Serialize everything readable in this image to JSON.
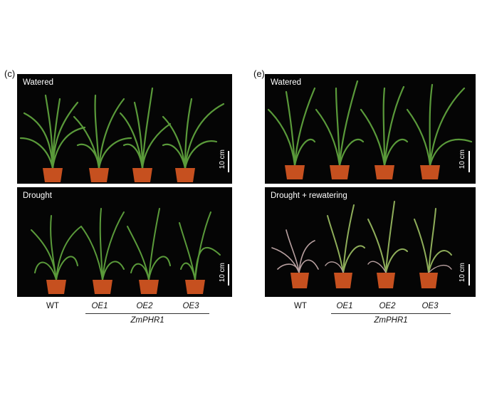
{
  "panels": [
    {
      "letter": "(c)",
      "top_label": "Watered",
      "bottom_label": "Drought",
      "scale_top": "10 cm",
      "scale_bottom": "10 cm",
      "genotypes": [
        "WT",
        "OE1",
        "OE2",
        "OE3"
      ],
      "group_label": "ZmPHR1"
    },
    {
      "letter": "(e)",
      "top_label": "Watered",
      "bottom_label": "Drought + rewatering",
      "scale_top": "10 cm",
      "scale_bottom": "10 cm",
      "genotypes": [
        "WT",
        "OE1",
        "OE2",
        "OE3"
      ],
      "group_label": "ZmPHR1"
    }
  ],
  "colors": {
    "background": "#050505",
    "pot": "#c6501f",
    "leaf": "#5a9a3a",
    "dry_leaf": "#b8a0a0"
  }
}
